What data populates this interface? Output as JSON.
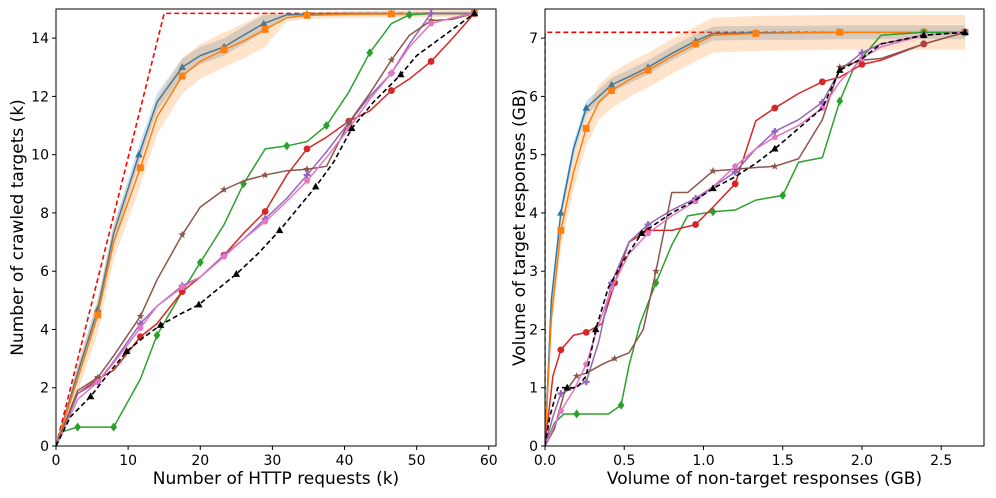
{
  "chart_data": [
    {
      "type": "line",
      "xlabel": "Number of HTTP requests (k)",
      "ylabel": "Number of crawled targets (k)",
      "xlim": [
        0,
        61
      ],
      "ylim": [
        0,
        15
      ],
      "xticks": [
        0,
        10,
        20,
        30,
        40,
        50,
        60
      ],
      "yticks": [
        0,
        2,
        4,
        6,
        8,
        10,
        12,
        14
      ],
      "xtick_labels": [
        "0",
        "10",
        "20",
        "30",
        "40",
        "50",
        "60"
      ],
      "ytick_labels": [
        "0",
        "2",
        "4",
        "6",
        "8",
        "10",
        "12",
        "14"
      ],
      "grid": false,
      "series": [
        {
          "color": "#ff0000",
          "dash": true,
          "x": [
            0,
            15,
            58
          ],
          "y": [
            0,
            14.85,
            14.85
          ]
        },
        {
          "color": "#1f77b4",
          "marker": "triangle",
          "band": 0.3,
          "x": [
            0,
            3,
            5.8,
            8,
            11.5,
            14,
            17.5,
            20,
            23.3,
            26,
            28.8,
            32,
            34.8,
            40.6,
            46.5,
            52,
            58
          ],
          "y": [
            0,
            2.5,
            4.7,
            7.3,
            10,
            11.8,
            13,
            13.4,
            13.7,
            14.1,
            14.5,
            14.8,
            14.82,
            14.84,
            14.84,
            14.84,
            14.85
          ]
        },
        {
          "color": "#ff7f0e",
          "marker": "square",
          "band": 0.6,
          "x": [
            0,
            3,
            5.8,
            8,
            11.7,
            14,
            17.5,
            20,
            23.3,
            26,
            29,
            32,
            34.8,
            40.6,
            46.5,
            52,
            58
          ],
          "y": [
            0,
            2.3,
            4.5,
            7,
            9.55,
            11.3,
            12.7,
            13.2,
            13.6,
            13.9,
            14.3,
            14.7,
            14.78,
            14.82,
            14.83,
            14.84,
            14.85
          ]
        },
        {
          "color": "#2ca02c",
          "marker": "diamond",
          "x": [
            0,
            1,
            3,
            5.8,
            8,
            11.7,
            14,
            17.5,
            20,
            23.3,
            26,
            29,
            32,
            34.8,
            37.5,
            40.6,
            43.5,
            46.5,
            49,
            52,
            58
          ],
          "y": [
            0,
            0.5,
            0.65,
            0.65,
            0.65,
            2.3,
            3.8,
            5.3,
            6.3,
            7.6,
            9,
            10.2,
            10.3,
            10.45,
            11,
            12.15,
            13.5,
            14.5,
            14.8,
            14.85,
            14.85
          ]
        },
        {
          "color": "#d62728",
          "marker": "circle",
          "x": [
            0,
            3,
            5.8,
            8,
            11.7,
            14,
            17.5,
            20,
            23.3,
            26,
            29,
            32,
            34.8,
            37.5,
            40.6,
            43.5,
            46.5,
            49,
            52,
            55,
            58
          ],
          "y": [
            0,
            1.8,
            2.3,
            2.6,
            3.75,
            4.2,
            5.3,
            5.8,
            6.55,
            7.3,
            8.05,
            9.3,
            10.2,
            10.6,
            11.15,
            11.5,
            12.2,
            12.6,
            13.2,
            14,
            14.85
          ]
        },
        {
          "color": "#9467bd",
          "marker": "plus",
          "x": [
            0,
            3,
            5.8,
            8,
            11.7,
            14,
            17.5,
            20,
            23.3,
            26,
            29,
            32,
            34.8,
            37.5,
            40.6,
            43.5,
            46.5,
            49,
            52,
            55,
            58
          ],
          "y": [
            0,
            1.8,
            2.2,
            2.9,
            4.2,
            4.8,
            5.5,
            5.8,
            6.55,
            7.1,
            7.8,
            8.5,
            9.3,
            10.1,
            11.1,
            12,
            12.8,
            13.8,
            14.85,
            14.85,
            14.85
          ]
        },
        {
          "color": "#8c564b",
          "marker": "star",
          "x": [
            0,
            3,
            5.8,
            8,
            11.7,
            14,
            17.5,
            20,
            23.3,
            26,
            29,
            32,
            34.8,
            37.5,
            40.6,
            43.5,
            46.5,
            49,
            52,
            55,
            58
          ],
          "y": [
            0,
            1.9,
            2.35,
            3.1,
            4.45,
            5.7,
            7.25,
            8.2,
            8.8,
            9.1,
            9.3,
            9.45,
            9.5,
            9.6,
            11.1,
            12.1,
            13.25,
            14.1,
            14.6,
            14.65,
            14.85
          ]
        },
        {
          "color": "#e377c2",
          "marker": "pentagon",
          "x": [
            0,
            3,
            5.8,
            8,
            11.7,
            14,
            17.5,
            20,
            23.3,
            26,
            29,
            32,
            34.8,
            37.5,
            40.6,
            43.5,
            46.5,
            49,
            52,
            55,
            58
          ],
          "y": [
            0,
            1.6,
            2.2,
            2.85,
            4.05,
            4.8,
            5.45,
            5.8,
            6.5,
            7.1,
            7.7,
            8.4,
            9.1,
            9.9,
            10.9,
            11.9,
            12.8,
            13.7,
            14.5,
            14.7,
            14.85
          ]
        },
        {
          "color": "#000000",
          "marker": "triangle",
          "dash": true,
          "x": [
            0,
            2,
            4.8,
            7,
            9.8,
            12,
            14.5,
            17,
            19.8,
            22,
            25,
            28,
            31,
            33.5,
            36,
            38.5,
            41,
            44,
            47.8,
            50,
            58
          ],
          "y": [
            0,
            1,
            1.7,
            2.4,
            3.25,
            3.7,
            4.15,
            4.5,
            4.85,
            5.3,
            5.9,
            6.6,
            7.4,
            8.15,
            8.9,
            9.75,
            10.9,
            11.8,
            12.75,
            13.4,
            14.85
          ]
        }
      ]
    },
    {
      "type": "line",
      "xlabel": "Volume of non-target responses (GB)",
      "ylabel": "Volume of target responses (GB)",
      "xlim": [
        0,
        2.77
      ],
      "ylim": [
        0,
        7.5
      ],
      "xticks": [
        0,
        0.5,
        1,
        1.5,
        2,
        2.5
      ],
      "yticks": [
        0,
        1,
        2,
        3,
        4,
        5,
        6,
        7
      ],
      "xtick_labels": [
        "0.0",
        "0.5",
        "1.0",
        "1.5",
        "2.0",
        "2.5"
      ],
      "ytick_labels": [
        "0",
        "1",
        "2",
        "3",
        "4",
        "5",
        "6",
        "7"
      ],
      "grid": false,
      "series": [
        {
          "color": "#ff0000",
          "dash": true,
          "x": [
            0,
            0,
            2.65
          ],
          "y": [
            0,
            7.1,
            7.1
          ]
        },
        {
          "color": "#1f77b4",
          "marker": "triangle",
          "band": 0.12,
          "x": [
            0,
            0.04,
            0.1,
            0.18,
            0.26,
            0.34,
            0.42,
            0.54,
            0.65,
            0.81,
            0.95,
            1.06,
            1.33,
            1.6,
            1.86,
            2.12,
            2.39,
            2.65
          ],
          "y": [
            0,
            2.5,
            4,
            5.1,
            5.8,
            6,
            6.2,
            6.35,
            6.5,
            6.75,
            6.95,
            7.08,
            7.09,
            7.09,
            7.1,
            7.1,
            7.1,
            7.1
          ]
        },
        {
          "color": "#ff7f0e",
          "marker": "square",
          "band": 0.3,
          "x": [
            0,
            0.04,
            0.1,
            0.18,
            0.26,
            0.34,
            0.42,
            0.54,
            0.65,
            0.81,
            0.95,
            1.06,
            1.33,
            1.6,
            1.86,
            2.12,
            2.39,
            2.65
          ],
          "y": [
            0,
            2.2,
            3.7,
            4.7,
            5.45,
            5.9,
            6.1,
            6.3,
            6.45,
            6.7,
            6.9,
            7.05,
            7.08,
            7.09,
            7.1,
            7.1,
            7.1,
            7.1
          ]
        },
        {
          "color": "#2ca02c",
          "marker": "diamond",
          "x": [
            0,
            0.06,
            0.12,
            0.2,
            0.26,
            0.4,
            0.48,
            0.53,
            0.6,
            0.7,
            0.8,
            0.9,
            1.06,
            1.2,
            1.33,
            1.5,
            1.6,
            1.75,
            1.86,
            1.95,
            2.12,
            2.39,
            2.65
          ],
          "y": [
            0,
            0.4,
            0.55,
            0.55,
            0.55,
            0.55,
            0.7,
            1.38,
            2.1,
            2.8,
            3.45,
            3.95,
            4.02,
            4.05,
            4.22,
            4.3,
            4.87,
            4.95,
            5.92,
            6.5,
            7.05,
            7.1,
            7.1
          ]
        },
        {
          "color": "#d62728",
          "marker": "circle",
          "x": [
            0,
            0.05,
            0.1,
            0.18,
            0.26,
            0.36,
            0.44,
            0.53,
            0.65,
            0.8,
            0.95,
            1.06,
            1.2,
            1.33,
            1.45,
            1.6,
            1.75,
            1.86,
            2,
            2.12,
            2.39,
            2.65
          ],
          "y": [
            0,
            1.2,
            1.65,
            1.9,
            1.95,
            2.1,
            2.8,
            3.5,
            3.7,
            3.7,
            3.8,
            4.1,
            4.5,
            5.58,
            5.8,
            6.05,
            6.25,
            6.33,
            6.55,
            6.62,
            6.9,
            7.1
          ]
        },
        {
          "color": "#9467bd",
          "marker": "plus",
          "x": [
            0,
            0.05,
            0.1,
            0.18,
            0.26,
            0.34,
            0.42,
            0.53,
            0.65,
            0.8,
            0.95,
            1.06,
            1.2,
            1.33,
            1.45,
            1.6,
            1.75,
            1.86,
            2,
            2.12,
            2.39,
            2.65
          ],
          "y": [
            0,
            0.5,
            0.9,
            1.0,
            1.1,
            1.8,
            2.8,
            3.5,
            3.8,
            4.05,
            4.25,
            4.45,
            4.7,
            5.1,
            5.4,
            5.6,
            5.9,
            6.45,
            6.75,
            6.9,
            7.05,
            7.1
          ]
        },
        {
          "color": "#8c564b",
          "marker": "star",
          "x": [
            0,
            0.06,
            0.12,
            0.2,
            0.26,
            0.36,
            0.44,
            0.53,
            0.62,
            0.7,
            0.8,
            0.9,
            1.06,
            1.2,
            1.33,
            1.45,
            1.6,
            1.75,
            1.86,
            2,
            2.12,
            2.39,
            2.65
          ],
          "y": [
            0,
            0.3,
            0.9,
            1.2,
            1.25,
            1.4,
            1.5,
            1.6,
            2.0,
            3.0,
            4.35,
            4.35,
            4.72,
            4.75,
            4.78,
            4.8,
            4.93,
            5.6,
            6.5,
            6.62,
            6.65,
            6.9,
            7.1
          ]
        },
        {
          "color": "#e377c2",
          "marker": "pentagon",
          "x": [
            0,
            0.05,
            0.1,
            0.18,
            0.26,
            0.34,
            0.42,
            0.53,
            0.65,
            0.8,
            0.95,
            1.06,
            1.2,
            1.33,
            1.45,
            1.6,
            1.75,
            1.86,
            2,
            2.12,
            2.39,
            2.65
          ],
          "y": [
            0,
            0.3,
            0.6,
            0.95,
            1.4,
            2.1,
            2.7,
            3.3,
            3.65,
            3.95,
            4.2,
            4.45,
            4.8,
            5.1,
            5.3,
            5.5,
            5.8,
            6.25,
            6.65,
            6.85,
            7.05,
            7.1
          ]
        },
        {
          "color": "#000000",
          "marker": "triangle",
          "dash": true,
          "x": [
            0,
            0.03,
            0.08,
            0.14,
            0.2,
            0.26,
            0.32,
            0.4,
            0.5,
            0.61,
            0.8,
            0.95,
            1.06,
            1.2,
            1.33,
            1.45,
            1.6,
            1.75,
            1.86,
            2,
            2.12,
            2.39,
            2.65
          ],
          "y": [
            0,
            0.5,
            1,
            1.0,
            1.0,
            1.2,
            2.0,
            2.72,
            3.2,
            3.65,
            4.0,
            4.22,
            4.42,
            4.62,
            4.85,
            5.1,
            5.45,
            5.8,
            6.45,
            6.65,
            6.9,
            7.05,
            7.1
          ]
        }
      ]
    }
  ]
}
